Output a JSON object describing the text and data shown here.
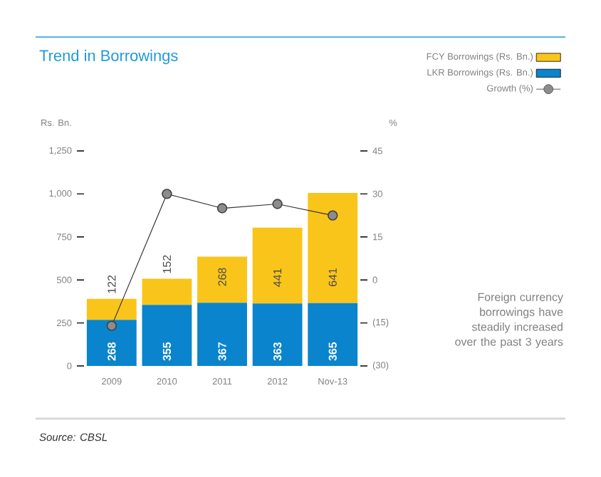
{
  "chart_data": {
    "type": "bar",
    "stacked": true,
    "title": "Trend in Borrowings",
    "ylabel": "Rs. Bn.",
    "y2label": "%",
    "categories": [
      "2009",
      "2010",
      "2011",
      "2012",
      "Nov-13"
    ],
    "series": [
      {
        "name": "LKR Borrowings (Rs. Bn.)",
        "color": "#0a84cc",
        "values": [
          268,
          355,
          367,
          363,
          365
        ],
        "value_labels": [
          "268",
          "355",
          "367",
          "363",
          "365"
        ]
      },
      {
        "name": "FCY Borrowings (Rs. Bn.)",
        "color": "#f9c51a",
        "values": [
          122,
          152,
          268,
          441,
          641
        ],
        "value_labels": [
          "122",
          "152",
          "268",
          "441",
          "641"
        ]
      },
      {
        "name": "Growth (%)",
        "type": "line",
        "axis": "y2",
        "color": "#333333",
        "values": [
          -16,
          30,
          25,
          26.5,
          22.5
        ]
      }
    ],
    "ylim": [
      0,
      1250
    ],
    "yticks": [
      0,
      250,
      500,
      750,
      {
        "value": 1000,
        "label": "1,000"
      },
      {
        "value": 1250,
        "label": "1,250"
      }
    ],
    "y2lim": [
      -30,
      45
    ],
    "y2ticks": [
      {
        "value": -30,
        "label": "(30)"
      },
      {
        "value": -15,
        "label": "(15)"
      },
      0,
      15,
      30,
      45
    ],
    "legend": "top right",
    "marker": "circle",
    "line_style": "solid",
    "grid": false,
    "annotations": [
      "Foreign currency borrowings have steadily increased over the past 3 years",
      "Source: CBSL"
    ]
  }
}
